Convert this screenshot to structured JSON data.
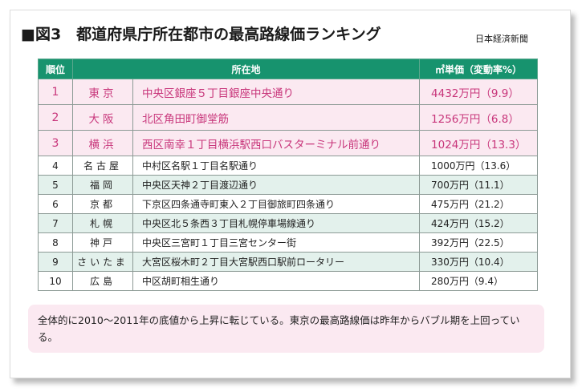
{
  "figure": {
    "title": "■図3　都道府県庁所在都市の最高路線価ランキング",
    "source": "日本経済新聞"
  },
  "table": {
    "headers": [
      "順位",
      "所在地",
      "㎡単価（変動率%）"
    ],
    "rows": [
      {
        "rank": "1",
        "city": "東京",
        "location": "中央区銀座５丁目銀座中央通り",
        "price": "4432万円（9.9）"
      },
      {
        "rank": "2",
        "city": "大阪",
        "location": "北区角田町御堂筋",
        "price": "1256万円（6.8）"
      },
      {
        "rank": "3",
        "city": "横浜",
        "location": "西区南幸１丁目横浜駅西口バスターミナル前通り",
        "price": "1024万円（13.3）"
      },
      {
        "rank": "4",
        "city": "名古屋",
        "location": "中村区名駅１丁目名駅通り",
        "price": "1000万円（13.6）"
      },
      {
        "rank": "5",
        "city": "福岡",
        "location": "中央区天神２丁目渡辺通り",
        "price": "700万円（11.1）"
      },
      {
        "rank": "6",
        "city": "京都",
        "location": "下京区四条通寺町東入２丁目御旅町四条通り",
        "price": "475万円（21.2）"
      },
      {
        "rank": "7",
        "city": "札幌",
        "location": "中央区北５条西３丁目札幌停車場線通り",
        "price": "424万円（15.2）"
      },
      {
        "rank": "8",
        "city": "神戸",
        "location": "中央区三宮町１丁目三宮センター街",
        "price": "392万円（22.5）"
      },
      {
        "rank": "9",
        "city": "さいたま",
        "location": "大宮区桜木町２丁目大宮駅西口駅前ロータリー",
        "price": "330万円（10.4）"
      },
      {
        "rank": "10",
        "city": "広島",
        "location": "中区胡町相生通り",
        "price": "280万円（9.4）"
      }
    ]
  },
  "note": {
    "text": "全体的に2010～2011年の底値から上昇に転じている。東京の最高路線価は昨年からバブル期を上回っている。"
  },
  "colors": {
    "header_green": "#17936e",
    "top3_pink_bg": "#fbe9f1",
    "top3_text": "#c8367b",
    "band_green": "#e3f1ec"
  }
}
